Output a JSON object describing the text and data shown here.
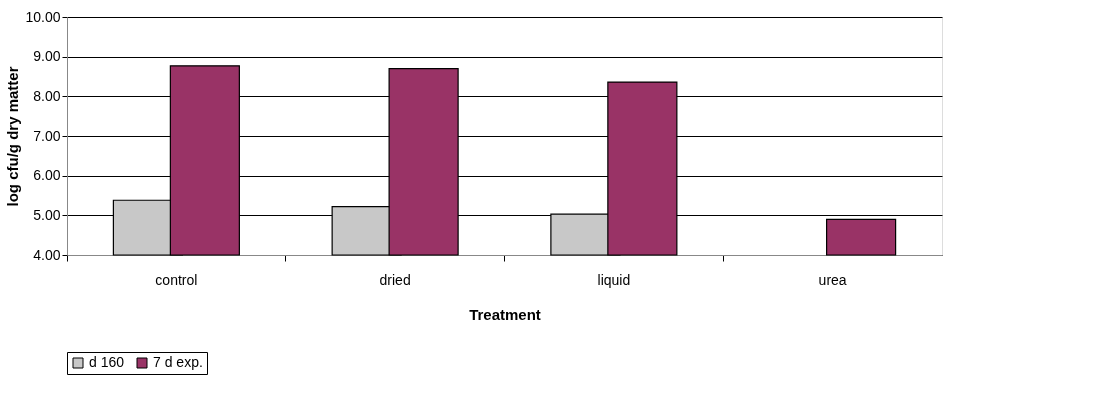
{
  "chart_data": {
    "type": "bar",
    "xlabel": "Treatment",
    "ylabel": "log cfu/g dry matter",
    "categories": [
      "control",
      "dried",
      "liquid",
      "urea"
    ],
    "series": [
      {
        "name": "d 160",
        "color": "#c8c8c8",
        "values": [
          5.38,
          5.22,
          5.03,
          null
        ]
      },
      {
        "name": "7 d exp.",
        "color": "#993366",
        "values": [
          8.77,
          8.7,
          8.36,
          4.9
        ]
      }
    ],
    "ylim": [
      4,
      10
    ],
    "yticks": [
      {
        "value": 4,
        "label": "4.00"
      },
      {
        "value": 5,
        "label": "5.00"
      },
      {
        "value": 6,
        "label": "6.00"
      },
      {
        "value": 7,
        "label": "7.00"
      },
      {
        "value": 8,
        "label": "8.00"
      },
      {
        "value": 9,
        "label": "9.00"
      },
      {
        "value": 10,
        "label": "10.00"
      }
    ],
    "grid": "y",
    "legend": "bottom"
  }
}
